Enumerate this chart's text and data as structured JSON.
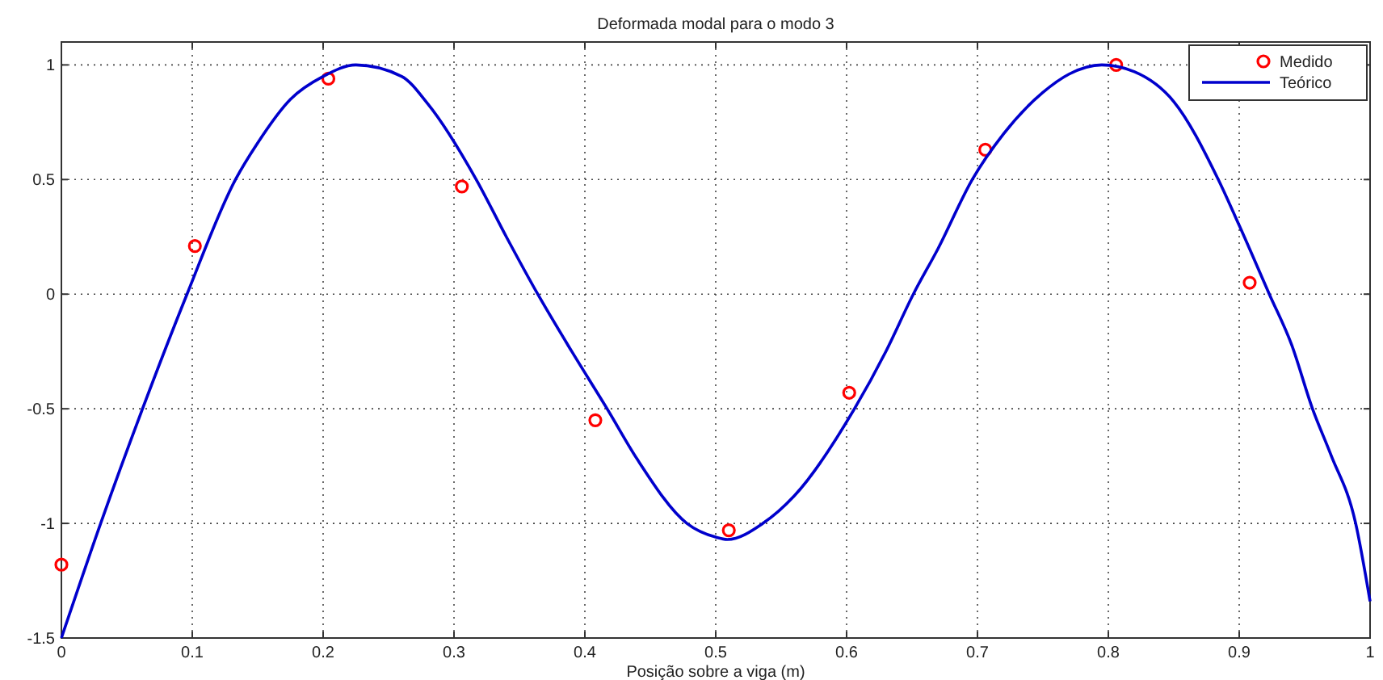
{
  "chart_data": {
    "type": "line",
    "title": "Deformada modal para o modo 3",
    "xlabel": "Posição sobre a viga (m)",
    "xlim": [
      0,
      1
    ],
    "xticks": [
      0,
      0.1,
      0.2,
      0.3,
      0.4,
      0.5,
      0.6,
      0.7,
      0.8,
      0.9,
      1
    ],
    "ylim": [
      -1.5,
      1.1
    ],
    "yticks": [
      -1.5,
      -1,
      -0.5,
      0,
      0.5,
      1
    ],
    "grid": true,
    "legend": "top right",
    "series": [
      {
        "name": "Medido",
        "type": "scatter",
        "marker": "circle",
        "color": "#ff0000",
        "x": [
          0,
          0.102,
          0.204,
          0.306,
          0.408,
          0.51,
          0.602,
          0.706,
          0.806,
          0.908
        ],
        "values": [
          -1.18,
          0.21,
          0.94,
          0.47,
          -0.55,
          -1.03,
          -0.43,
          0.63,
          1.0,
          0.05
        ]
      },
      {
        "name": "Teórico",
        "marker": "none",
        "line_style": "solid",
        "color": "#0000cc",
        "x": [
          0,
          0.03,
          0.062,
          0.096,
          0.133,
          0.15,
          0.175,
          0.2,
          0.225,
          0.26,
          0.28,
          0.317,
          0.34,
          0.364,
          0.39,
          0.417,
          0.44,
          0.478,
          0.5,
          0.509,
          0.536,
          0.56,
          0.606,
          0.63,
          0.651,
          0.67,
          0.696,
          0.72,
          0.75,
          0.77,
          0.795,
          0.82,
          0.85,
          0.884,
          0.9,
          0.923,
          0.94,
          0.956,
          0.97,
          0.989,
          1
        ],
        "values": [
          -1.5,
          -1,
          -0.5,
          0,
          0.5,
          0.66,
          0.85,
          0.95,
          1,
          0.95,
          0.83,
          0.5,
          0.25,
          0,
          -0.25,
          -0.5,
          -0.72,
          -1,
          -1.06,
          -1.07,
          -1,
          -0.88,
          -0.5,
          -0.25,
          0,
          0.2,
          0.5,
          0.7,
          0.88,
          0.96,
          1,
          0.97,
          0.84,
          0.5,
          0.3,
          0,
          -0.22,
          -0.5,
          -0.7,
          -1,
          -1.34
        ]
      }
    ]
  }
}
